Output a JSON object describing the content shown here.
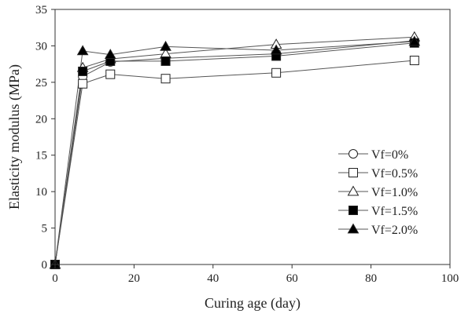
{
  "chart_data": {
    "type": "line",
    "xlabel": "Curing age (day)",
    "ylabel": "Elasticity modulus (MPa)",
    "xlim": [
      0,
      100
    ],
    "ylim": [
      0,
      35
    ],
    "xticks": [
      0,
      20,
      40,
      60,
      80,
      100
    ],
    "yticks": [
      0,
      5,
      10,
      15,
      20,
      25,
      30,
      35
    ],
    "grid": false,
    "legend_position": "bottom-right",
    "line_color": "#555555",
    "marker_edge_color": "#222222",
    "series": [
      {
        "name": "Vf=0%",
        "marker": "circle-open",
        "x": [
          0,
          7,
          14,
          28,
          56,
          91
        ],
        "y": [
          0,
          25.8,
          27.8,
          28.3,
          28.9,
          30.7
        ]
      },
      {
        "name": "Vf=0.5%",
        "marker": "square-open",
        "x": [
          0,
          7,
          14,
          28,
          56,
          91
        ],
        "y": [
          0,
          24.8,
          26.1,
          25.5,
          26.3,
          28.0
        ]
      },
      {
        "name": "Vf=1.0%",
        "marker": "triangle-open",
        "x": [
          0,
          7,
          14,
          28,
          56,
          91
        ],
        "y": [
          0,
          27.0,
          28.2,
          28.9,
          30.2,
          31.2
        ]
      },
      {
        "name": "Vf=1.5%",
        "marker": "square-filled",
        "x": [
          0,
          7,
          14,
          28,
          56,
          91
        ],
        "y": [
          0,
          26.5,
          27.9,
          27.9,
          28.6,
          30.4
        ]
      },
      {
        "name": "Vf=2.0%",
        "marker": "triangle-filled",
        "x": [
          0,
          7,
          14,
          28,
          56,
          91
        ],
        "y": [
          0,
          29.3,
          28.8,
          29.9,
          29.4,
          30.6
        ]
      }
    ]
  }
}
